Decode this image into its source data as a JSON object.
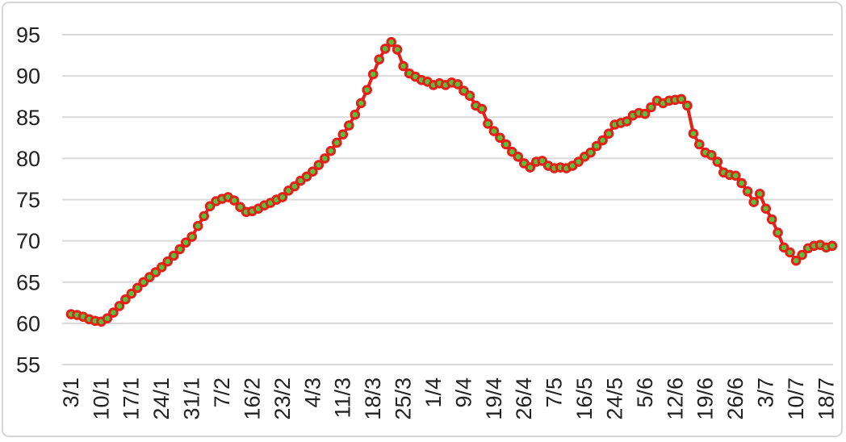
{
  "window": {
    "background": "#ffffff",
    "border_color": "#d6d6d6"
  },
  "chart_data": {
    "type": "line",
    "title": "",
    "xlabel": "",
    "ylabel": "",
    "legend": null,
    "grid": true,
    "ylim": [
      55,
      95
    ],
    "y_ticks": [
      55,
      60,
      65,
      70,
      75,
      80,
      85,
      90,
      95
    ],
    "points_per_tick": 5,
    "x_tick_labels": [
      "3/1",
      "10/1",
      "17/1",
      "24/1",
      "31/1",
      "7/2",
      "16/2",
      "23/2",
      "4/3",
      "11/3",
      "18/3",
      "25/3",
      "1/4",
      "9/4",
      "19/4",
      "26/4",
      "7/5",
      "16/5",
      "24/5",
      "5/6",
      "12/6",
      "19/6",
      "26/6",
      "3/7",
      "10/7",
      "18/7"
    ],
    "values": [
      61.1,
      61.0,
      60.8,
      60.5,
      60.3,
      60.2,
      60.6,
      61.3,
      62.1,
      62.9,
      63.6,
      64.3,
      65.0,
      65.6,
      66.2,
      66.8,
      67.5,
      68.2,
      69.0,
      69.8,
      70.5,
      71.8,
      73.0,
      74.2,
      74.8,
      75.1,
      75.3,
      74.9,
      74.1,
      73.5,
      73.6,
      73.9,
      74.3,
      74.6,
      75.0,
      75.3,
      76.1,
      76.6,
      77.3,
      77.8,
      78.4,
      79.2,
      80.0,
      80.9,
      81.9,
      82.9,
      84.0,
      85.3,
      86.7,
      88.3,
      90.2,
      92.0,
      93.3,
      94.1,
      93.2,
      91.2,
      90.3,
      89.9,
      89.5,
      89.3,
      88.9,
      89.1,
      88.9,
      89.2,
      89.0,
      88.2,
      87.6,
      86.4,
      86.0,
      84.2,
      83.3,
      82.5,
      81.7,
      80.8,
      80.2,
      79.4,
      78.9,
      79.6,
      79.7,
      79.1,
      78.8,
      78.9,
      78.8,
      79.1,
      79.6,
      80.2,
      80.7,
      81.5,
      82.2,
      83.0,
      84.1,
      84.3,
      84.5,
      85.2,
      85.5,
      85.4,
      86.2,
      87.0,
      86.7,
      87.0,
      87.1,
      87.2,
      86.4,
      83.0,
      81.7,
      80.7,
      80.4,
      79.6,
      78.3,
      78.0,
      77.9,
      77.0,
      76.0,
      74.7,
      75.7,
      73.9,
      72.6,
      71.0,
      69.2,
      68.6,
      67.6,
      68.3,
      69.1,
      69.4,
      69.5,
      69.2,
      69.4
    ],
    "line_color": "#e32119",
    "marker_fill": "#5cbe3d",
    "marker_border": "#e32119",
    "gridline_color": "#d9d9d9",
    "axis_text_color": "#222222"
  }
}
